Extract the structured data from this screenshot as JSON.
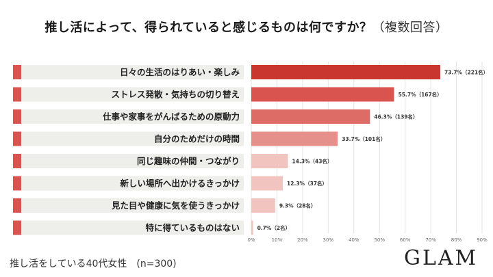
{
  "header": {
    "title": "推し活によって、得られていると感じるものは何ですか？",
    "title_suffix": "（複数回答）"
  },
  "footer": {
    "note": "推し活をしている40代女性　(n=300)",
    "logo": "GLAM"
  },
  "colors": {
    "label_bg": "#eeeeea",
    "label_marker": "#d9534f",
    "bar_shades": [
      "#c9362f",
      "#d9534f",
      "#dd6b66",
      "#e5908a",
      "#f2c4c0",
      "#f2c4c0",
      "#f2c4c0",
      "#f2c4c0"
    ]
  },
  "chart_data": {
    "type": "bar",
    "orientation": "horizontal",
    "categories": [
      "日々の生活のはりあい・楽しみ",
      "ストレス発散・気持ちの切り替え",
      "仕事や家事をがんばるための原動力",
      "自分のためだけの時間",
      "同じ趣味の仲間・つながり",
      "新しい場所へ出かけるきっかけ",
      "見た目や健康に気を使うきっかけ",
      "特に得ているものはない"
    ],
    "values": [
      73.7,
      55.7,
      46.3,
      33.7,
      14.3,
      12.3,
      9.3,
      0.7
    ],
    "data_labels": [
      "73.7%（221名）",
      "55.7%（167名）",
      "46.3%（139名）",
      "33.7%（101名）",
      "14.3%（43名）",
      "12.3%（37名）",
      "9.3%（28名）",
      "0.7%（2名）"
    ],
    "xlim": [
      0,
      90
    ],
    "xticks": [
      "0%",
      "10%",
      "20%",
      "30%",
      "40%",
      "50%",
      "60%",
      "70%",
      "80%",
      "90%"
    ],
    "grid": true
  }
}
